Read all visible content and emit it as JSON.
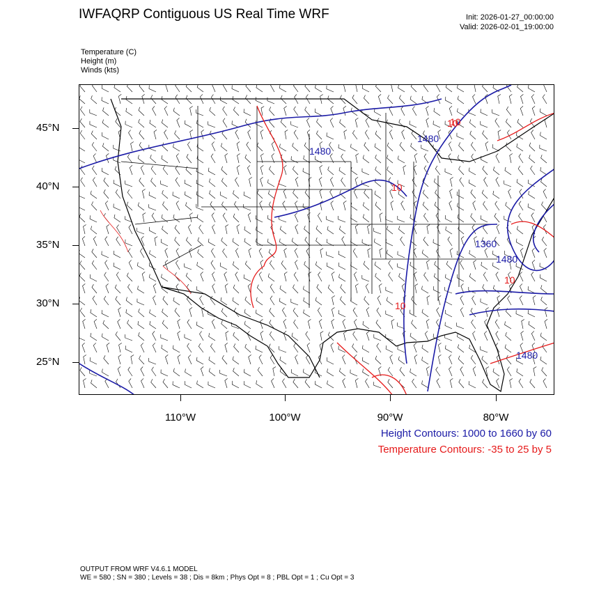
{
  "title": "IWFAQRP Contiguous US Real Time WRF",
  "init": "Init: 2026-01-27_00:00:00",
  "valid": "Valid: 2026-02-01_19:00:00",
  "variables": [
    "Temperature   (C)",
    "Height   (m)",
    "Winds   (kts)"
  ],
  "map": {
    "lat_labels": [
      "45°N",
      "40°N",
      "35°N",
      "30°N",
      "25°N"
    ],
    "lon_labels": [
      "110°W",
      "100°W",
      "90°W",
      "80°W"
    ],
    "height_contour_labels": [
      "1480",
      "1480",
      "1480",
      "1360",
      "1480"
    ],
    "temp_contour_labels": [
      "10",
      "10",
      "10",
      "10",
      "10"
    ]
  },
  "legend": {
    "height": "Height Contours: 1000 to 1660 by 60",
    "temperature": "Temperature Contours: -35 to 25 by 5"
  },
  "footer": {
    "line1": "OUTPUT FROM WRF V4.6.1 MODEL",
    "line2": "WE = 580 ; SN = 380 ; Levels = 38 ; Dis = 8km ; Phys Opt = 8 ; PBL Opt = 1 ; Cu Opt = 3"
  },
  "colors": {
    "height_contour": "#1a1aa6",
    "temperature_contour": "#e61a1a",
    "boundaries": "#000000"
  }
}
